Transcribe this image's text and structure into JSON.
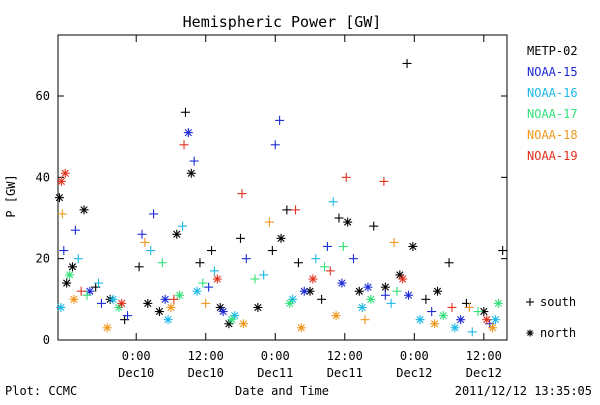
{
  "chart_data": {
    "type": "scatter",
    "title": "Hemispheric Power [GW]",
    "ylabel": "P [GW]",
    "xlabel": "Date and Time",
    "ylim": [
      0,
      75
    ],
    "xlim": [
      "2011-12-09 10:30",
      "2011-12-12 16:00"
    ],
    "yticks": [
      0,
      20,
      40,
      60
    ],
    "xticks": [
      {
        "t": "2011-12-10 00:00",
        "time": "0:00",
        "date": "Dec10"
      },
      {
        "t": "2011-12-10 12:00",
        "time": "12:00",
        "date": "Dec10"
      },
      {
        "t": "2011-12-11 00:00",
        "time": "0:00",
        "date": "Dec11"
      },
      {
        "t": "2011-12-11 12:00",
        "time": "12:00",
        "date": "Dec11"
      },
      {
        "t": "2011-12-12 00:00",
        "time": "0:00",
        "date": "Dec12"
      },
      {
        "t": "2011-12-12 12:00",
        "time": "12:00",
        "date": "Dec12"
      }
    ],
    "grid": false,
    "legend_position": "right",
    "marker_key": [
      {
        "symbol": "+",
        "label": "south"
      },
      {
        "symbol": "*",
        "label": "north"
      }
    ],
    "series": [
      {
        "name": "METP-02",
        "color": "#000000",
        "points": [
          {
            "t": "2011-12-09 10:45",
            "v": 35,
            "h": "north"
          },
          {
            "t": "2011-12-09 12:00",
            "v": 14,
            "h": "north"
          },
          {
            "t": "2011-12-09 13:00",
            "v": 18,
            "h": "north"
          },
          {
            "t": "2011-12-09 15:00",
            "v": 32,
            "h": "north"
          },
          {
            "t": "2011-12-09 17:00",
            "v": 13,
            "h": "south"
          },
          {
            "t": "2011-12-09 19:30",
            "v": 10,
            "h": "north"
          },
          {
            "t": "2011-12-09 22:00",
            "v": 5,
            "h": "south"
          },
          {
            "t": "2011-12-10 00:30",
            "v": 18,
            "h": "south"
          },
          {
            "t": "2011-12-10 02:00",
            "v": 9,
            "h": "north"
          },
          {
            "t": "2011-12-10 04:00",
            "v": 7,
            "h": "north"
          },
          {
            "t": "2011-12-10 07:00",
            "v": 26,
            "h": "north"
          },
          {
            "t": "2011-12-10 08:30",
            "v": 56,
            "h": "south"
          },
          {
            "t": "2011-12-10 09:30",
            "v": 41,
            "h": "north"
          },
          {
            "t": "2011-12-10 11:00",
            "v": 19,
            "h": "south"
          },
          {
            "t": "2011-12-10 13:00",
            "v": 22,
            "h": "south"
          },
          {
            "t": "2011-12-10 14:30",
            "v": 8,
            "h": "north"
          },
          {
            "t": "2011-12-10 16:00",
            "v": 4,
            "h": "north"
          },
          {
            "t": "2011-12-10 18:00",
            "v": 25,
            "h": "south"
          },
          {
            "t": "2011-12-10 21:00",
            "v": 8,
            "h": "north"
          },
          {
            "t": "2011-12-10 23:30",
            "v": 22,
            "h": "south"
          },
          {
            "t": "2011-12-11 01:00",
            "v": 25,
            "h": "north"
          },
          {
            "t": "2011-12-11 02:00",
            "v": 32,
            "h": "south"
          },
          {
            "t": "2011-12-11 04:00",
            "v": 19,
            "h": "south"
          },
          {
            "t": "2011-12-11 06:00",
            "v": 12,
            "h": "north"
          },
          {
            "t": "2011-12-11 08:00",
            "v": 10,
            "h": "south"
          },
          {
            "t": "2011-12-11 11:00",
            "v": 30,
            "h": "south"
          },
          {
            "t": "2011-12-11 12:30",
            "v": 29,
            "h": "north"
          },
          {
            "t": "2011-12-11 14:30",
            "v": 12,
            "h": "north"
          },
          {
            "t": "2011-12-11 17:00",
            "v": 28,
            "h": "south"
          },
          {
            "t": "2011-12-11 19:00",
            "v": 13,
            "h": "north"
          },
          {
            "t": "2011-12-11 21:30",
            "v": 16,
            "h": "north"
          },
          {
            "t": "2011-12-11 22:45",
            "v": 68,
            "h": "south"
          },
          {
            "t": "2011-12-11 23:45",
            "v": 23,
            "h": "north"
          },
          {
            "t": "2011-12-12 02:00",
            "v": 10,
            "h": "south"
          },
          {
            "t": "2011-12-12 04:00",
            "v": 12,
            "h": "north"
          },
          {
            "t": "2011-12-12 06:00",
            "v": 19,
            "h": "south"
          },
          {
            "t": "2011-12-12 09:00",
            "v": 9,
            "h": "south"
          },
          {
            "t": "2011-12-12 12:00",
            "v": 7,
            "h": "north"
          },
          {
            "t": "2011-12-12 15:15",
            "v": 22,
            "h": "south"
          }
        ]
      },
      {
        "name": "NOAA-15",
        "color": "#1c2bd6",
        "points": [
          {
            "t": "2011-12-09 11:30",
            "v": 22,
            "h": "south"
          },
          {
            "t": "2011-12-09 13:30",
            "v": 27,
            "h": "south"
          },
          {
            "t": "2011-12-09 16:00",
            "v": 12,
            "h": "north"
          },
          {
            "t": "2011-12-09 18:00",
            "v": 9,
            "h": "south"
          },
          {
            "t": "2011-12-09 22:30",
            "v": 6,
            "h": "south"
          },
          {
            "t": "2011-12-10 01:00",
            "v": 26,
            "h": "south"
          },
          {
            "t": "2011-12-10 03:00",
            "v": 31,
            "h": "south"
          },
          {
            "t": "2011-12-10 05:00",
            "v": 10,
            "h": "north"
          },
          {
            "t": "2011-12-10 09:00",
            "v": 51,
            "h": "north"
          },
          {
            "t": "2011-12-10 10:00",
            "v": 44,
            "h": "south"
          },
          {
            "t": "2011-12-10 12:30",
            "v": 13,
            "h": "south"
          },
          {
            "t": "2011-12-10 15:00",
            "v": 7,
            "h": "north"
          },
          {
            "t": "2011-12-10 19:00",
            "v": 20,
            "h": "south"
          },
          {
            "t": "2011-12-11 00:00",
            "v": 48,
            "h": "south"
          },
          {
            "t": "2011-12-11 00:45",
            "v": 54,
            "h": "south"
          },
          {
            "t": "2011-12-11 05:00",
            "v": 12,
            "h": "north"
          },
          {
            "t": "2011-12-11 09:00",
            "v": 23,
            "h": "south"
          },
          {
            "t": "2011-12-11 11:30",
            "v": 14,
            "h": "north"
          },
          {
            "t": "2011-12-11 13:30",
            "v": 20,
            "h": "south"
          },
          {
            "t": "2011-12-11 16:00",
            "v": 13,
            "h": "north"
          },
          {
            "t": "2011-12-11 19:00",
            "v": 11,
            "h": "south"
          },
          {
            "t": "2011-12-11 23:00",
            "v": 11,
            "h": "north"
          },
          {
            "t": "2011-12-12 03:00",
            "v": 7,
            "h": "south"
          },
          {
            "t": "2011-12-12 08:00",
            "v": 5,
            "h": "north"
          },
          {
            "t": "2011-12-12 13:00",
            "v": 4,
            "h": "south"
          }
        ]
      },
      {
        "name": "NOAA-16",
        "color": "#1ab8e6",
        "points": [
          {
            "t": "2011-12-09 11:00",
            "v": 8,
            "h": "north"
          },
          {
            "t": "2011-12-09 14:00",
            "v": 20,
            "h": "south"
          },
          {
            "t": "2011-12-09 17:30",
            "v": 14,
            "h": "south"
          },
          {
            "t": "2011-12-09 20:00",
            "v": 10,
            "h": "north"
          },
          {
            "t": "2011-12-10 02:30",
            "v": 22,
            "h": "south"
          },
          {
            "t": "2011-12-10 05:30",
            "v": 5,
            "h": "north"
          },
          {
            "t": "2011-12-10 08:00",
            "v": 28,
            "h": "south"
          },
          {
            "t": "2011-12-10 10:30",
            "v": 12,
            "h": "north"
          },
          {
            "t": "2011-12-10 13:30",
            "v": 17,
            "h": "south"
          },
          {
            "t": "2011-12-10 17:00",
            "v": 6,
            "h": "north"
          },
          {
            "t": "2011-12-10 22:00",
            "v": 16,
            "h": "south"
          },
          {
            "t": "2011-12-11 03:00",
            "v": 10,
            "h": "north"
          },
          {
            "t": "2011-12-11 07:00",
            "v": 20,
            "h": "south"
          },
          {
            "t": "2011-12-11 10:00",
            "v": 34,
            "h": "south"
          },
          {
            "t": "2011-12-11 15:00",
            "v": 8,
            "h": "north"
          },
          {
            "t": "2011-12-11 20:00",
            "v": 9,
            "h": "south"
          },
          {
            "t": "2011-12-12 01:00",
            "v": 5,
            "h": "north"
          },
          {
            "t": "2011-12-12 07:00",
            "v": 3,
            "h": "north"
          },
          {
            "t": "2011-12-12 10:00",
            "v": 2,
            "h": "south"
          },
          {
            "t": "2011-12-12 14:00",
            "v": 5,
            "h": "north"
          }
        ]
      },
      {
        "name": "NOAA-17",
        "color": "#33e07a",
        "points": [
          {
            "t": "2011-12-09 12:30",
            "v": 16,
            "h": "north"
          },
          {
            "t": "2011-12-09 15:30",
            "v": 11,
            "h": "south"
          },
          {
            "t": "2011-12-09 21:00",
            "v": 8,
            "h": "north"
          },
          {
            "t": "2011-12-10 04:30",
            "v": 19,
            "h": "south"
          },
          {
            "t": "2011-12-10 07:30",
            "v": 11,
            "h": "north"
          },
          {
            "t": "2011-12-10 11:30",
            "v": 14,
            "h": "south"
          },
          {
            "t": "2011-12-10 16:30",
            "v": 5,
            "h": "north"
          },
          {
            "t": "2011-12-10 20:30",
            "v": 15,
            "h": "south"
          },
          {
            "t": "2011-12-11 02:30",
            "v": 9,
            "h": "north"
          },
          {
            "t": "2011-12-11 08:30",
            "v": 18,
            "h": "south"
          },
          {
            "t": "2011-12-11 11:45",
            "v": 23,
            "h": "south"
          },
          {
            "t": "2011-12-11 16:30",
            "v": 10,
            "h": "north"
          },
          {
            "t": "2011-12-11 21:00",
            "v": 12,
            "h": "south"
          },
          {
            "t": "2011-12-12 05:00",
            "v": 6,
            "h": "north"
          },
          {
            "t": "2011-12-12 11:00",
            "v": 7,
            "h": "south"
          },
          {
            "t": "2011-12-12 14:30",
            "v": 9,
            "h": "north"
          }
        ]
      },
      {
        "name": "NOAA-18",
        "color": "#f0961c",
        "points": [
          {
            "t": "2011-12-09 11:15",
            "v": 31,
            "h": "south"
          },
          {
            "t": "2011-12-09 13:15",
            "v": 10,
            "h": "north"
          },
          {
            "t": "2011-12-09 19:00",
            "v": 3,
            "h": "north"
          },
          {
            "t": "2011-12-10 01:30",
            "v": 24,
            "h": "south"
          },
          {
            "t": "2011-12-10 06:00",
            "v": 8,
            "h": "north"
          },
          {
            "t": "2011-12-10 12:00",
            "v": 9,
            "h": "south"
          },
          {
            "t": "2011-12-10 18:30",
            "v": 4,
            "h": "north"
          },
          {
            "t": "2011-12-10 23:00",
            "v": 29,
            "h": "south"
          },
          {
            "t": "2011-12-11 04:30",
            "v": 3,
            "h": "north"
          },
          {
            "t": "2011-12-11 10:30",
            "v": 6,
            "h": "north"
          },
          {
            "t": "2011-12-11 15:30",
            "v": 5,
            "h": "south"
          },
          {
            "t": "2011-12-11 20:30",
            "v": 24,
            "h": "south"
          },
          {
            "t": "2011-12-12 03:30",
            "v": 4,
            "h": "north"
          },
          {
            "t": "2011-12-12 09:30",
            "v": 8,
            "h": "south"
          },
          {
            "t": "2011-12-12 13:30",
            "v": 3,
            "h": "north"
          }
        ]
      },
      {
        "name": "NOAA-19",
        "color": "#e0301c",
        "points": [
          {
            "t": "2011-12-09 11:05",
            "v": 39,
            "h": "north"
          },
          {
            "t": "2011-12-09 11:45",
            "v": 41,
            "h": "north"
          },
          {
            "t": "2011-12-09 14:30",
            "v": 12,
            "h": "south"
          },
          {
            "t": "2011-12-09 21:30",
            "v": 9,
            "h": "north"
          },
          {
            "t": "2011-12-10 06:30",
            "v": 10,
            "h": "south"
          },
          {
            "t": "2011-12-10 08:15",
            "v": 48,
            "h": "south"
          },
          {
            "t": "2011-12-10 14:00",
            "v": 15,
            "h": "north"
          },
          {
            "t": "2011-12-10 18:15",
            "v": 36,
            "h": "south"
          },
          {
            "t": "2011-12-11 03:30",
            "v": 32,
            "h": "south"
          },
          {
            "t": "2011-12-11 06:30",
            "v": 15,
            "h": "north"
          },
          {
            "t": "2011-12-11 09:30",
            "v": 17,
            "h": "south"
          },
          {
            "t": "2011-12-11 12:15",
            "v": 40,
            "h": "south"
          },
          {
            "t": "2011-12-11 18:45",
            "v": 39,
            "h": "south"
          },
          {
            "t": "2011-12-11 22:00",
            "v": 15,
            "h": "north"
          },
          {
            "t": "2011-12-12 06:30",
            "v": 8,
            "h": "south"
          },
          {
            "t": "2011-12-12 12:30",
            "v": 5,
            "h": "north"
          }
        ]
      }
    ]
  },
  "footer": {
    "left": "Plot: CCMC",
    "right": "2011/12/12 13:35:05"
  }
}
